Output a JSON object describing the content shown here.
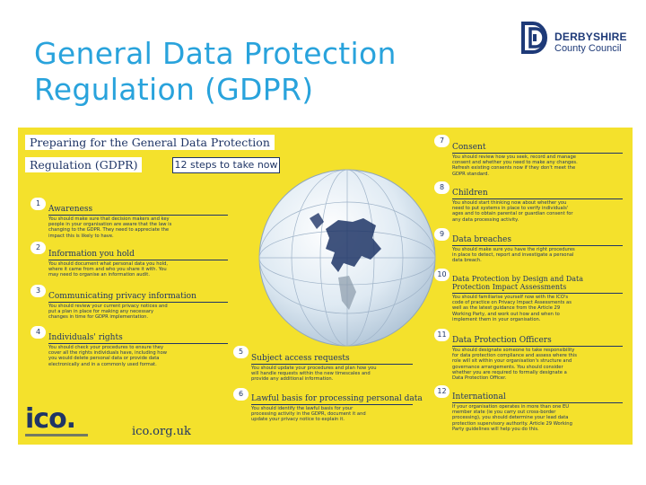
{
  "slide": {
    "title_line1": "General Data Protection",
    "title_line2": "Regulation (GDPR)"
  },
  "logo": {
    "line1": "DERBYSHIRE",
    "line2": "County Council",
    "icon": "dd-logo-icon",
    "color": "#1e3a78"
  },
  "poster": {
    "header_line1": "Preparing for the General Data Protection",
    "header_line2": "Regulation (GDPR)",
    "steps_label": "12 steps to take now",
    "background": "#f4e12c",
    "text_color": "#1f3566",
    "ico_logo": "ico.",
    "ico_url": "ico.org.uk",
    "steps": [
      {
        "num": "1",
        "title": "Awareness",
        "body": [
          "You should make sure that decision makers and key",
          "people in your organisation are aware that the law is",
          "changing to the GDPR. They need to appreciate the",
          "impact this is likely to have."
        ]
      },
      {
        "num": "2",
        "title": "Information you hold",
        "body": [
          "You should document what personal data you hold,",
          "where it came from and who you share it with. You",
          "may need to organise an information audit."
        ]
      },
      {
        "num": "3",
        "title": "Communicating privacy information",
        "body": [
          "You should review your current privacy notices and",
          "put a plan in place for making any necessary",
          "changes in time for GDPR implementation."
        ]
      },
      {
        "num": "4",
        "title": "Individuals' rights",
        "body": [
          "You should check your procedures to ensure they",
          "cover all the rights individuals have, including how",
          "you would delete personal data or provide data",
          "electronically and in a commonly used format."
        ]
      },
      {
        "num": "5",
        "title": "Subject access requests",
        "body": [
          "You should update your procedures and plan how you",
          "will handle requests within the new timescales and",
          "provide any additional information."
        ]
      },
      {
        "num": "6",
        "title": "Lawful basis for processing personal data",
        "body": [
          "You should identify the lawful basis for your",
          "processing activity in the GDPR, document it and",
          "update your privacy notice to explain it."
        ]
      },
      {
        "num": "7",
        "title": "Consent",
        "body": [
          "You should review how you seek, record and manage",
          "consent and whether you need to make any changes.",
          "Refresh existing consents now if they don't meet the",
          "GDPR standard."
        ]
      },
      {
        "num": "8",
        "title": "Children",
        "body": [
          "You should start thinking now about whether you",
          "need to put systems in place to verify individuals'",
          "ages and to obtain parental or guardian consent for",
          "any data processing activity."
        ]
      },
      {
        "num": "9",
        "title": "Data breaches",
        "body": [
          "You should make sure you have the right procedures",
          "in place to detect, report and investigate a personal",
          "data breach."
        ]
      },
      {
        "num": "10",
        "title": "Data Protection by Design and Data Protection Impact Assessments",
        "body": [
          "You should familiarise yourself now with the ICO's",
          "code of practice on Privacy Impact Assessments as",
          "well as the latest guidance from the Article 29",
          "Working Party, and work out how and when to",
          "implement them in your organisation."
        ]
      },
      {
        "num": "11",
        "title": "Data Protection Officers",
        "body": [
          "You should designate someone to take responsibility",
          "for data protection compliance and assess where this",
          "role will sit within your organisation's structure and",
          "governance arrangements. You should consider",
          "whether you are required to formally designate a",
          "Data Protection Officer."
        ]
      },
      {
        "num": "12",
        "title": "International",
        "body": [
          "If your organisation operates in more than one EU",
          "member state (ie you carry out cross-border",
          "processing), you should determine your lead data",
          "protection supervisory authority. Article 29 Working",
          "Party guidelines will help you do this."
        ]
      }
    ]
  }
}
